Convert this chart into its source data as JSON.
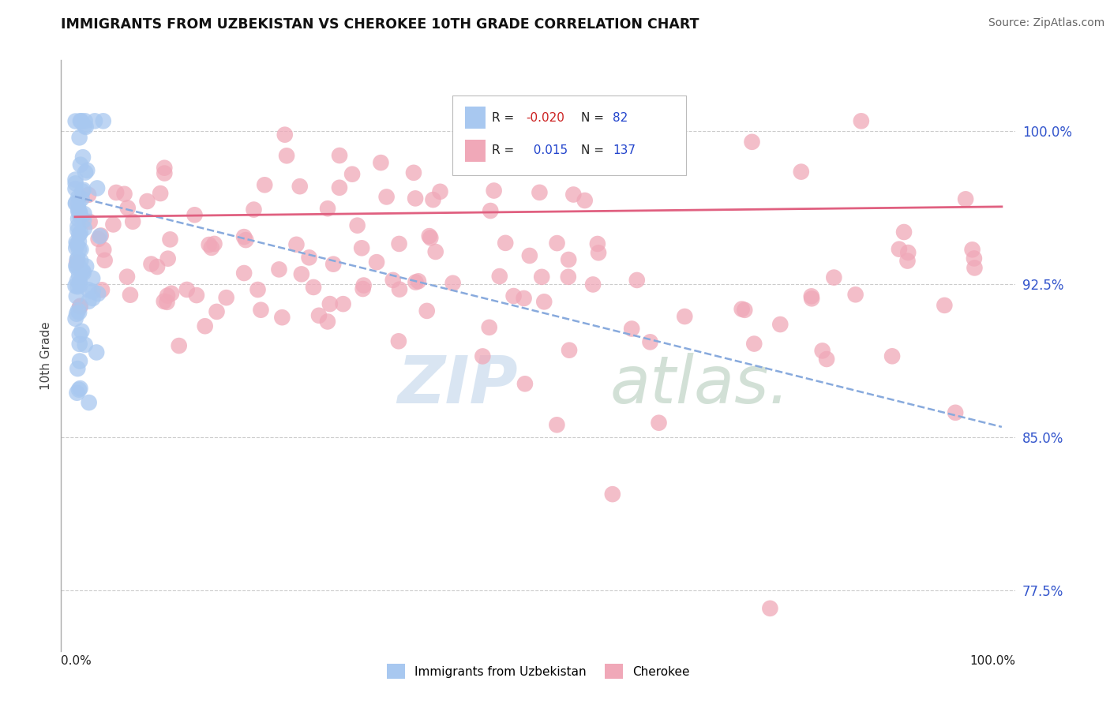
{
  "title": "IMMIGRANTS FROM UZBEKISTAN VS CHEROKEE 10TH GRADE CORRELATION CHART",
  "source": "Source: ZipAtlas.com",
  "ylabel": "10th Grade",
  "xlim": [
    0.0,
    1.0
  ],
  "ylim": [
    0.745,
    1.035
  ],
  "ytick_positions": [
    0.775,
    0.85,
    0.925,
    1.0
  ],
  "ytick_labels": [
    "77.5%",
    "85.0%",
    "92.5%",
    "100.0%"
  ],
  "legend_r_blue": "-0.020",
  "legend_n_blue": "82",
  "legend_r_pink": "0.015",
  "legend_n_pink": "137",
  "blue_color": "#a8c8f0",
  "pink_color": "#f0a8b8",
  "trendline_blue_color": "#88aadd",
  "trendline_pink_color": "#e06080",
  "watermark_zip_color": "#c8ddf0",
  "watermark_atlas_color": "#b0ccb8",
  "background_color": "#ffffff",
  "blue_trend_x0": 0.0,
  "blue_trend_y0": 0.968,
  "blue_trend_x1": 1.0,
  "blue_trend_y1": 0.855,
  "pink_trend_x0": 0.0,
  "pink_trend_y0": 0.958,
  "pink_trend_x1": 1.0,
  "pink_trend_y1": 0.963
}
